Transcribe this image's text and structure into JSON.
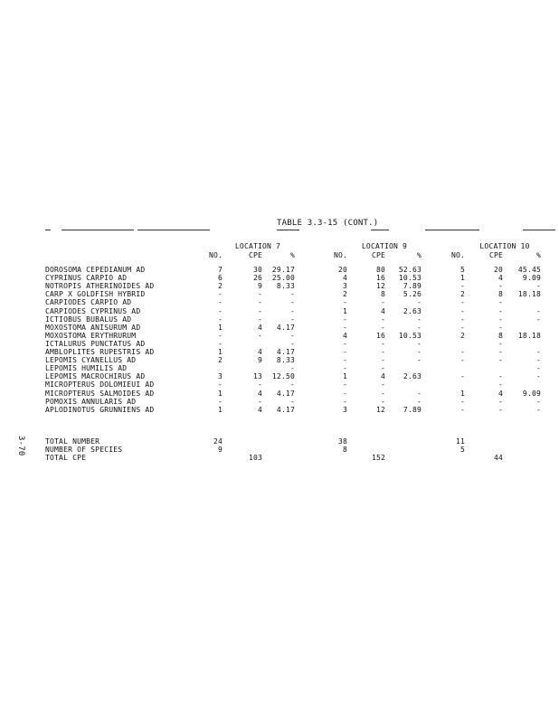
{
  "title": "TABLE 3.3-15 (CONT.)",
  "page_number": "3-70",
  "locations": [
    {
      "label": "LOCATION 7",
      "cols": [
        "NO.",
        "CPE",
        "%"
      ]
    },
    {
      "label": "LOCATION 9",
      "cols": [
        "NO.",
        "CPE",
        "%"
      ]
    },
    {
      "label": "LOCATION 10",
      "cols": [
        "NO.",
        "CPE",
        "%"
      ]
    }
  ],
  "rows": [
    {
      "species": "DOROSOMA CEPEDIANUM AD",
      "v": [
        "7",
        "30",
        "29.17",
        "20",
        "80",
        "52.63",
        "5",
        "20",
        "45.45"
      ]
    },
    {
      "species": "CYPRINUS CARPIO AD",
      "v": [
        "6",
        "26",
        "25.00",
        "4",
        "16",
        "10.53",
        "1",
        "4",
        "9.09"
      ]
    },
    {
      "species": "NOTROPIS ATHERINOIDES AD",
      "v": [
        "2",
        "9",
        "8.33",
        "3",
        "12",
        "7.89",
        "-",
        "-",
        "-"
      ]
    },
    {
      "species": "CARP X GOLDFISH HYBRID",
      "v": [
        "-",
        "-",
        "-",
        "2",
        "8",
        "5.26",
        "2",
        "8",
        "18.18"
      ]
    },
    {
      "species": "CARPIODES CARPIO AD",
      "v": [
        "-",
        "-",
        "-",
        "-",
        "-",
        "-",
        "-",
        "-",
        ""
      ]
    },
    {
      "species": "CARPIODES CYPRINUS AD",
      "v": [
        "-",
        "-",
        "-",
        "1",
        "4",
        "2.63",
        "-",
        "-",
        "-"
      ]
    },
    {
      "species": "ICTIOBUS BUBALUS AD",
      "v": [
        "-",
        "-",
        "-",
        "-",
        "-",
        "-",
        "-",
        "-",
        "-"
      ]
    },
    {
      "species": "MOXOSTOMA ANISURUM AD",
      "v": [
        "1",
        "4",
        "4.17",
        "-",
        "-",
        "-",
        "-",
        "-",
        ""
      ]
    },
    {
      "species": "MOXOSTOMA ERYTHRURUM",
      "v": [
        "-",
        "-",
        "-",
        "4",
        "16",
        "10.53",
        "2",
        "8",
        "18.18"
      ]
    },
    {
      "species": "ICTALURUS PUNCTATUS AD",
      "v": [
        "-",
        "",
        "-",
        "-",
        "-",
        "-",
        "",
        "-",
        ""
      ]
    },
    {
      "species": "AMBLOPLITES RUPESTRIS AD",
      "v": [
        "1",
        "4",
        "4.17",
        "-",
        "-",
        "-",
        "-",
        "-",
        "-"
      ]
    },
    {
      "species": "LEPOMIS CYANELLUS AD",
      "v": [
        "2",
        "9",
        "8.33",
        "-",
        "-",
        "-",
        "-",
        "-",
        "-"
      ]
    },
    {
      "species": "LEPOMIS HUMILIS AD",
      "v": [
        "",
        "",
        "-",
        "-",
        "-",
        "",
        "",
        "",
        "-"
      ]
    },
    {
      "species": "LEPOMIS MACROCHIRUS AD",
      "v": [
        "3",
        "13",
        "12.50",
        "1",
        "4",
        "2.63",
        "-",
        "-",
        "-"
      ]
    },
    {
      "species": "MICROPTERUS DOLOMIEUI AD",
      "v": [
        "-",
        "-",
        "-",
        "-",
        "-",
        "",
        "",
        "-",
        ""
      ]
    },
    {
      "species": "MICROPTERUS SALMOIDES AD",
      "v": [
        "1",
        "4",
        "4.17",
        "-",
        "-",
        "-",
        "1",
        "4",
        "9.09"
      ]
    },
    {
      "species": "POMOXIS ANNULARIS AD",
      "v": [
        "-",
        "-",
        "-",
        "-",
        "-",
        "-",
        "-",
        "-",
        "-"
      ]
    },
    {
      "species": "APLODINOTUS GRUNNIENS AD",
      "v": [
        "1",
        "4",
        "4.17",
        "3",
        "12",
        "7.89",
        "-",
        "-",
        "-"
      ]
    }
  ],
  "totals": {
    "total_number_label": "TOTAL NUMBER",
    "number_of_species_label": "NUMBER OF SPECIES",
    "total_cpe_label": "TOTAL CPE",
    "values": [
      {
        "total_number": "24",
        "number_of_species": "9",
        "total_cpe": "103"
      },
      {
        "total_number": "38",
        "number_of_species": "8",
        "total_cpe": "152"
      },
      {
        "total_number": "11",
        "number_of_species": "5",
        "total_cpe": "44"
      }
    ]
  }
}
